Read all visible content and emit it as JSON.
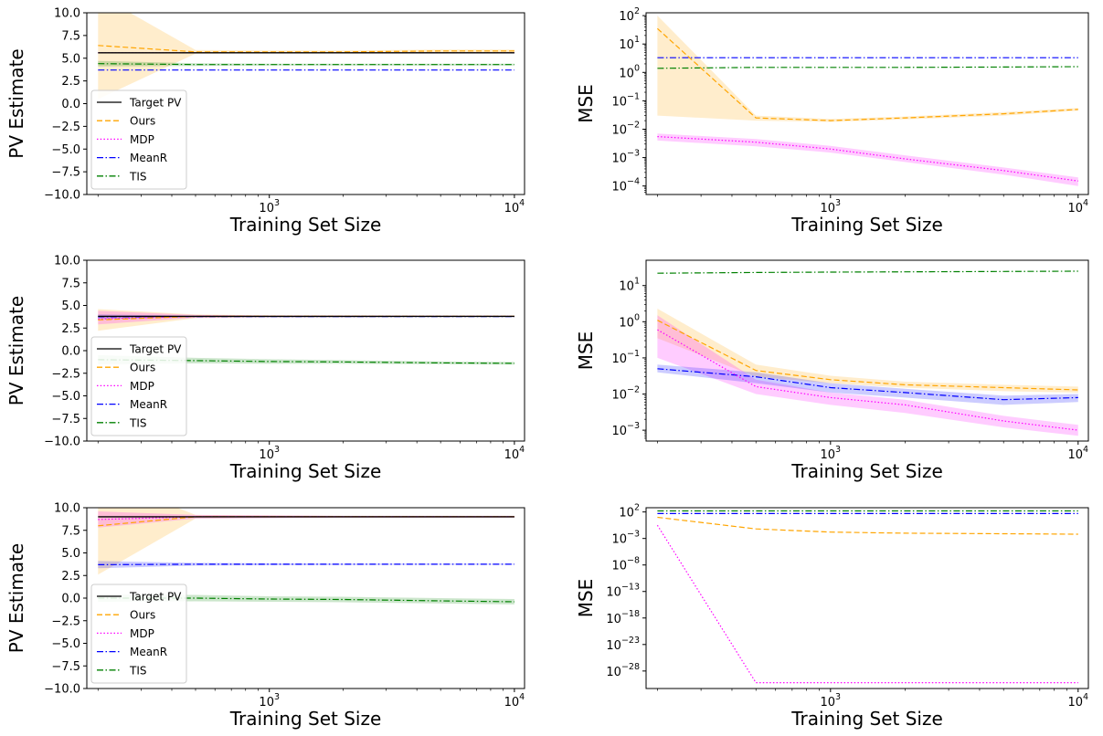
{
  "figure": {
    "series_styles": [
      {
        "name": "Target PV",
        "color": "#000000",
        "dash": "solid"
      },
      {
        "name": "Ours",
        "color": "#ffa500",
        "dash": "dashed"
      },
      {
        "name": "MDP",
        "color": "#ff00ff",
        "dash": "dotted"
      },
      {
        "name": "MeanR",
        "color": "#0000ff",
        "dash": "dashdot"
      },
      {
        "name": "TIS",
        "color": "#008000",
        "dash": "dashdot"
      }
    ]
  },
  "chart_data": [
    {
      "type": "line",
      "xscale": "log",
      "yscale": "linear",
      "xlabel": "Training Set Size",
      "ylabel": "PV Estimate",
      "xlim": [
        180,
        11000
      ],
      "ylim": [
        -10,
        10
      ],
      "yticks": [
        "10.0",
        "7.5",
        "5.0",
        "2.5",
        "0.0",
        "−2.5",
        "−5.0",
        "−7.5",
        "−10.0"
      ],
      "ytick_values": [
        10,
        7.5,
        5,
        2.5,
        0,
        -2.5,
        -5,
        -7.5,
        -10
      ],
      "xticks": [
        {
          "value": 1000,
          "base": "10",
          "exp": "3"
        },
        {
          "value": 10000,
          "base": "10",
          "exp": "4"
        }
      ],
      "legend": {
        "position": "lower-left",
        "entries": [
          "Target PV",
          "Ours",
          "MDP",
          "MeanR",
          "TIS"
        ]
      },
      "x": [
        200,
        500,
        1000,
        2000,
        5000,
        10000
      ],
      "series": [
        {
          "name": "Target PV",
          "values": [
            5.6,
            5.6,
            5.6,
            5.6,
            5.6,
            5.6
          ]
        },
        {
          "name": "Ours",
          "values": [
            6.4,
            5.7,
            5.7,
            5.7,
            5.8,
            5.8
          ],
          "lower": [
            0.5,
            5.5,
            5.55,
            5.55,
            5.6,
            5.6
          ],
          "upper": [
            12.0,
            5.9,
            5.85,
            5.85,
            5.95,
            5.95
          ]
        },
        {
          "name": "MDP",
          "values": [
            5.6,
            5.6,
            5.6,
            5.6,
            5.6,
            5.6
          ]
        },
        {
          "name": "MeanR",
          "values": [
            3.7,
            3.7,
            3.7,
            3.7,
            3.7,
            3.7
          ]
        },
        {
          "name": "TIS",
          "values": [
            4.4,
            4.3,
            4.3,
            4.3,
            4.3,
            4.3
          ],
          "lower": [
            4.1,
            4.15,
            4.2,
            4.2,
            4.2,
            4.2
          ],
          "upper": [
            4.7,
            4.45,
            4.4,
            4.4,
            4.4,
            4.4
          ]
        }
      ]
    },
    {
      "type": "line",
      "xscale": "log",
      "yscale": "log",
      "xlabel": "Training Set Size",
      "ylabel": "MSE",
      "xlim": [
        180,
        11000
      ],
      "ylim_exp": [
        -4.3,
        2.1
      ],
      "yticks": [
        {
          "exp": 2,
          "base": "10",
          "label": "2"
        },
        {
          "exp": 1,
          "base": "10",
          "label": "1"
        },
        {
          "exp": 0,
          "base": "10",
          "label": "0"
        },
        {
          "exp": -1,
          "base": "10",
          "label": "−1"
        },
        {
          "exp": -2,
          "base": "10",
          "label": "−2"
        },
        {
          "exp": -3,
          "base": "10",
          "label": "−3"
        },
        {
          "exp": -4,
          "base": "10",
          "label": "−4"
        }
      ],
      "xticks": [
        {
          "value": 1000,
          "base": "10",
          "exp": "3"
        },
        {
          "value": 10000,
          "base": "10",
          "exp": "4"
        }
      ],
      "x": [
        200,
        500,
        1000,
        2000,
        5000,
        10000
      ],
      "series": [
        {
          "name": "Ours",
          "values": [
            35,
            0.025,
            0.02,
            0.025,
            0.035,
            0.05
          ],
          "lower": [
            0.03,
            0.02,
            0.018,
            0.022,
            0.03,
            0.045
          ],
          "upper": [
            100,
            0.03,
            0.023,
            0.028,
            0.04,
            0.056
          ]
        },
        {
          "name": "MDP",
          "values": [
            0.0055,
            0.0035,
            0.002,
            0.0009,
            0.00035,
            0.00015
          ],
          "lower": [
            0.004,
            0.0025,
            0.0015,
            0.0007,
            0.00025,
            0.0001
          ],
          "upper": [
            0.007,
            0.0045,
            0.0026,
            0.0012,
            0.00045,
            0.0002
          ]
        },
        {
          "name": "MeanR",
          "values": [
            3.3,
            3.3,
            3.3,
            3.3,
            3.3,
            3.3
          ]
        },
        {
          "name": "TIS",
          "values": [
            1.4,
            1.5,
            1.5,
            1.5,
            1.55,
            1.6
          ]
        }
      ]
    },
    {
      "type": "line",
      "xscale": "log",
      "yscale": "linear",
      "xlabel": "Training Set Size",
      "ylabel": "PV Estimate",
      "xlim": [
        180,
        11000
      ],
      "ylim": [
        -10,
        10
      ],
      "yticks": [
        "10.0",
        "7.5",
        "5.0",
        "2.5",
        "0.0",
        "−2.5",
        "−5.0",
        "−7.5",
        "−10.0"
      ],
      "ytick_values": [
        10,
        7.5,
        5,
        2.5,
        0,
        -2.5,
        -5,
        -7.5,
        -10
      ],
      "xticks": [
        {
          "value": 1000,
          "base": "10",
          "exp": "3"
        },
        {
          "value": 10000,
          "base": "10",
          "exp": "4"
        }
      ],
      "legend": {
        "position": "lower-left",
        "entries": [
          "Target PV",
          "Ours",
          "MDP",
          "MeanR",
          "TIS"
        ]
      },
      "x": [
        200,
        500,
        1000,
        2000,
        5000,
        10000
      ],
      "series": [
        {
          "name": "Target PV",
          "values": [
            3.8,
            3.8,
            3.8,
            3.8,
            3.8,
            3.8
          ]
        },
        {
          "name": "Ours",
          "values": [
            3.4,
            3.8,
            3.8,
            3.8,
            3.8,
            3.8
          ],
          "lower": [
            2.2,
            3.6,
            3.7,
            3.7,
            3.75,
            3.75
          ],
          "upper": [
            4.6,
            4.0,
            3.9,
            3.9,
            3.85,
            3.85
          ]
        },
        {
          "name": "MDP",
          "values": [
            3.5,
            3.8,
            3.8,
            3.8,
            3.8,
            3.8
          ],
          "lower": [
            2.9,
            3.65,
            3.72,
            3.73,
            3.75,
            3.75
          ],
          "upper": [
            4.4,
            3.95,
            3.88,
            3.87,
            3.85,
            3.85
          ]
        },
        {
          "name": "MeanR",
          "values": [
            3.75,
            3.78,
            3.78,
            3.78,
            3.78,
            3.78
          ],
          "lower": [
            3.5,
            3.7,
            3.72,
            3.72,
            3.74,
            3.74
          ],
          "upper": [
            4.0,
            3.86,
            3.84,
            3.84,
            3.82,
            3.82
          ]
        },
        {
          "name": "TIS",
          "values": [
            -1.0,
            -1.1,
            -1.2,
            -1.25,
            -1.35,
            -1.4
          ],
          "lower": [
            -1.5,
            -1.4,
            -1.45,
            -1.45,
            -1.5,
            -1.55
          ],
          "upper": [
            -0.5,
            -0.8,
            -0.95,
            -1.05,
            -1.2,
            -1.25
          ]
        }
      ]
    },
    {
      "type": "line",
      "xscale": "log",
      "yscale": "log",
      "xlabel": "Training Set Size",
      "ylabel": "MSE",
      "xlim": [
        180,
        11000
      ],
      "ylim_exp": [
        -3.3,
        1.7
      ],
      "yticks": [
        {
          "exp": 1,
          "base": "10",
          "label": "1"
        },
        {
          "exp": 0,
          "base": "10",
          "label": "0"
        },
        {
          "exp": -1,
          "base": "10",
          "label": "−1"
        },
        {
          "exp": -2,
          "base": "10",
          "label": "−2"
        },
        {
          "exp": -3,
          "base": "10",
          "label": "−3"
        }
      ],
      "xticks": [
        {
          "value": 1000,
          "base": "10",
          "exp": "3"
        },
        {
          "value": 10000,
          "base": "10",
          "exp": "4"
        }
      ],
      "x": [
        200,
        500,
        1000,
        2000,
        5000,
        10000
      ],
      "series": [
        {
          "name": "Ours",
          "values": [
            1.1,
            0.045,
            0.025,
            0.018,
            0.015,
            0.013
          ],
          "lower": [
            0.35,
            0.03,
            0.02,
            0.015,
            0.012,
            0.011
          ],
          "upper": [
            2.3,
            0.065,
            0.032,
            0.022,
            0.018,
            0.016
          ]
        },
        {
          "name": "MDP",
          "values": [
            0.6,
            0.016,
            0.008,
            0.005,
            0.0018,
            0.001
          ],
          "lower": [
            0.1,
            0.01,
            0.005,
            0.003,
            0.0012,
            0.0007
          ],
          "upper": [
            1.5,
            0.025,
            0.011,
            0.007,
            0.0025,
            0.0014
          ]
        },
        {
          "name": "MeanR",
          "values": [
            0.05,
            0.03,
            0.015,
            0.011,
            0.007,
            0.008
          ],
          "lower": [
            0.04,
            0.02,
            0.011,
            0.008,
            0.005,
            0.006
          ],
          "upper": [
            0.065,
            0.04,
            0.02,
            0.014,
            0.009,
            0.01
          ]
        },
        {
          "name": "TIS",
          "values": [
            22,
            23,
            23.5,
            24,
            24.5,
            25
          ]
        }
      ]
    },
    {
      "type": "line",
      "xscale": "log",
      "yscale": "linear",
      "xlabel": "Training Set Size",
      "ylabel": "PV Estimate",
      "xlim": [
        180,
        11000
      ],
      "ylim": [
        -10,
        10
      ],
      "yticks": [
        "10.0",
        "7.5",
        "5.0",
        "2.5",
        "0.0",
        "−2.5",
        "−5.0",
        "−7.5",
        "−10.0"
      ],
      "ytick_values": [
        10,
        7.5,
        5,
        2.5,
        0,
        -2.5,
        -5,
        -7.5,
        -10
      ],
      "xticks": [
        {
          "value": 1000,
          "base": "10",
          "exp": "3"
        },
        {
          "value": 10000,
          "base": "10",
          "exp": "4"
        }
      ],
      "legend": {
        "position": "lower-left",
        "entries": [
          "Target PV",
          "Ours",
          "MDP",
          "MeanR",
          "TIS"
        ]
      },
      "x": [
        200,
        500,
        1000,
        2000,
        5000,
        10000
      ],
      "series": [
        {
          "name": "Target PV",
          "values": [
            9.0,
            9.0,
            9.0,
            9.0,
            9.0,
            9.0
          ]
        },
        {
          "name": "Ours",
          "values": [
            8.0,
            9.0,
            9.0,
            9.0,
            9.0,
            9.0
          ],
          "lower": [
            2.6,
            8.8,
            8.85,
            8.9,
            8.9,
            8.9
          ],
          "upper": [
            13.5,
            9.2,
            9.15,
            9.1,
            9.1,
            9.1
          ]
        },
        {
          "name": "MDP",
          "values": [
            8.7,
            9.0,
            9.0,
            9.0,
            9.0,
            9.0
          ],
          "lower": [
            7.8,
            8.8,
            8.85,
            8.9,
            8.9,
            8.9
          ],
          "upper": [
            9.6,
            9.2,
            9.15,
            9.1,
            9.1,
            9.1
          ]
        },
        {
          "name": "MeanR",
          "values": [
            3.7,
            3.75,
            3.75,
            3.75,
            3.75,
            3.75
          ],
          "lower": [
            3.3,
            3.6,
            3.65,
            3.68,
            3.7,
            3.7
          ],
          "upper": [
            4.1,
            3.9,
            3.85,
            3.82,
            3.8,
            3.8
          ]
        },
        {
          "name": "TIS",
          "values": [
            0.0,
            0.0,
            -0.1,
            -0.15,
            -0.3,
            -0.4
          ],
          "lower": [
            -0.4,
            -0.35,
            -0.4,
            -0.45,
            -0.6,
            -0.7
          ],
          "upper": [
            0.4,
            0.35,
            0.2,
            0.15,
            0.0,
            -0.1
          ]
        }
      ]
    },
    {
      "type": "line",
      "xscale": "log",
      "yscale": "log",
      "xlabel": "Training Set Size",
      "ylabel": "MSE",
      "xlim": [
        180,
        11000
      ],
      "ylim_exp": [
        -31.3,
        2.8
      ],
      "yticks": [
        {
          "exp": 2,
          "base": "10",
          "label": "2"
        },
        {
          "exp": -3,
          "base": "10",
          "label": "−3"
        },
        {
          "exp": -8,
          "base": "10",
          "label": "−8"
        },
        {
          "exp": -13,
          "base": "10",
          "label": "−13"
        },
        {
          "exp": -18,
          "base": "10",
          "label": "−18"
        },
        {
          "exp": -23,
          "base": "10",
          "label": "−23"
        },
        {
          "exp": -28,
          "base": "10",
          "label": "−28"
        }
      ],
      "xticks": [
        {
          "value": 1000,
          "base": "10",
          "exp": "3"
        },
        {
          "value": 10000,
          "base": "10",
          "exp": "4"
        }
      ],
      "x": [
        200,
        500,
        1000,
        2000,
        5000,
        10000
      ],
      "y_exponents": true,
      "series": [
        {
          "name": "Ours",
          "values": [
            1.0,
            -1.2,
            -1.8,
            -2.0,
            -2.1,
            -2.2
          ]
        },
        {
          "name": "MDP",
          "values": [
            -0.5,
            -30.2,
            -30.2,
            -30.2,
            -30.2,
            -30.2
          ]
        },
        {
          "name": "MeanR",
          "values": [
            1.7,
            1.7,
            1.7,
            1.7,
            1.7,
            1.7
          ]
        },
        {
          "name": "TIS",
          "values": [
            2.2,
            2.2,
            2.2,
            2.2,
            2.2,
            2.2
          ]
        }
      ]
    }
  ]
}
